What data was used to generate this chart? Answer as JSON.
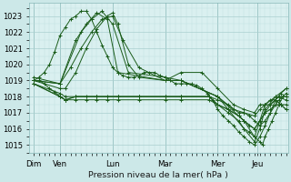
{
  "bg_color": "#cce8e8",
  "plot_bg_color": "#daf0f0",
  "grid_major_color": "#aacfcf",
  "grid_minor_color": "#c0e0e0",
  "line_color": "#1a5c1a",
  "ylabel_text": "Pression niveau de la mer( hPa )",
  "yticks": [
    1015,
    1016,
    1017,
    1018,
    1019,
    1020,
    1021,
    1022,
    1023
  ],
  "ylim": [
    1014.5,
    1023.8
  ],
  "day_labels": [
    "Dim",
    "Ven",
    "Lun",
    "Mar",
    "Mer",
    "Jeu"
  ],
  "day_positions": [
    0,
    30,
    90,
    150,
    210,
    255
  ],
  "xlim": [
    -5,
    290
  ],
  "num_hours": 290,
  "series": [
    [
      0,
      1019.0,
      6,
      1019.2,
      12,
      1019.5,
      18,
      1020.0,
      24,
      1020.8,
      30,
      1021.8,
      36,
      1022.3,
      42,
      1022.8,
      48,
      1023.0,
      54,
      1023.3,
      60,
      1023.3,
      66,
      1022.8,
      72,
      1022.0,
      78,
      1021.2,
      84,
      1020.5,
      90,
      1019.8,
      96,
      1019.5,
      102,
      1019.3,
      108,
      1019.2,
      114,
      1019.2,
      120,
      1019.3,
      126,
      1019.5,
      132,
      1019.5,
      138,
      1019.5,
      144,
      1019.3,
      150,
      1019.2,
      156,
      1019.0,
      162,
      1018.8,
      168,
      1018.8,
      174,
      1018.8,
      180,
      1018.8,
      186,
      1018.7,
      192,
      1018.5,
      198,
      1018.2,
      204,
      1017.8,
      210,
      1017.2,
      216,
      1016.8,
      222,
      1016.5,
      228,
      1016.2,
      234,
      1015.8,
      240,
      1015.5,
      246,
      1015.2,
      252,
      1015.0,
      258,
      1015.5,
      264,
      1016.2,
      270,
      1017.0,
      276,
      1017.8,
      282,
      1018.2,
      288,
      1018.5
    ],
    [
      0,
      1019.0,
      30,
      1018.8,
      54,
      1022.0,
      66,
      1022.8,
      78,
      1023.3,
      90,
      1022.5,
      108,
      1019.5,
      150,
      1019.2,
      168,
      1019.0,
      210,
      1018.0,
      240,
      1016.0,
      252,
      1015.2,
      258,
      1016.0,
      264,
      1017.2,
      276,
      1018.0,
      288,
      1018.5
    ],
    [
      0,
      1019.2,
      30,
      1018.8,
      48,
      1021.5,
      60,
      1022.5,
      72,
      1023.2,
      84,
      1022.8,
      96,
      1019.5,
      150,
      1019.0,
      168,
      1019.0,
      210,
      1018.0,
      240,
      1016.5,
      252,
      1015.5,
      258,
      1016.5,
      264,
      1017.5,
      276,
      1018.0,
      288,
      1017.8
    ],
    [
      0,
      1019.0,
      30,
      1018.8,
      42,
      1019.8,
      54,
      1021.0,
      66,
      1022.0,
      78,
      1022.8,
      90,
      1023.0,
      102,
      1021.5,
      120,
      1019.8,
      150,
      1019.0,
      168,
      1019.0,
      210,
      1018.0,
      228,
      1017.2,
      240,
      1017.0,
      252,
      1016.8,
      258,
      1017.2,
      264,
      1017.5,
      270,
      1017.5,
      276,
      1017.8,
      282,
      1017.5,
      288,
      1017.2
    ],
    [
      0,
      1019.0,
      30,
      1018.5,
      36,
      1018.5,
      48,
      1019.5,
      60,
      1021.0,
      72,
      1022.2,
      84,
      1023.0,
      90,
      1023.2,
      96,
      1022.5,
      108,
      1020.0,
      120,
      1019.2,
      150,
      1019.0,
      168,
      1019.5,
      192,
      1019.5,
      210,
      1018.5,
      228,
      1017.5,
      240,
      1017.2,
      252,
      1017.0,
      258,
      1017.5,
      264,
      1017.5,
      270,
      1017.8,
      276,
      1017.8,
      282,
      1017.5,
      288,
      1017.5
    ],
    [
      0,
      1018.8,
      30,
      1018.0,
      36,
      1017.8,
      48,
      1018.0,
      60,
      1018.0,
      72,
      1018.0,
      84,
      1018.0,
      96,
      1018.0,
      120,
      1018.0,
      150,
      1018.0,
      168,
      1018.0,
      200,
      1018.0,
      210,
      1017.5,
      222,
      1017.0,
      234,
      1016.5,
      240,
      1016.0,
      246,
      1015.8,
      252,
      1015.5,
      258,
      1015.2,
      261,
      1015.0,
      264,
      1015.5,
      268,
      1016.0,
      272,
      1016.5,
      276,
      1017.0,
      280,
      1017.5,
      284,
      1018.0,
      288,
      1018.2
    ],
    [
      0,
      1018.8,
      30,
      1018.0,
      36,
      1017.8,
      48,
      1018.0,
      72,
      1018.0,
      96,
      1018.0,
      120,
      1018.0,
      150,
      1018.0,
      168,
      1018.0,
      200,
      1018.0,
      210,
      1017.8,
      222,
      1017.5,
      234,
      1017.0,
      240,
      1017.0,
      246,
      1016.8,
      252,
      1016.5,
      258,
      1016.2,
      264,
      1016.5,
      270,
      1017.0,
      276,
      1017.5,
      280,
      1017.8,
      284,
      1018.0,
      288,
      1018.0
    ],
    [
      0,
      1018.8,
      30,
      1018.2,
      36,
      1018.0,
      48,
      1018.0,
      72,
      1018.0,
      96,
      1018.0,
      120,
      1018.0,
      150,
      1018.0,
      168,
      1018.0,
      200,
      1018.0,
      210,
      1017.5,
      222,
      1017.2,
      234,
      1016.8,
      240,
      1016.5,
      246,
      1016.2,
      252,
      1016.0,
      258,
      1016.5,
      264,
      1017.0,
      270,
      1017.5,
      276,
      1017.8,
      280,
      1018.0,
      284,
      1018.0,
      288,
      1018.0
    ],
    [
      0,
      1019.0,
      6,
      1019.0,
      12,
      1018.8,
      18,
      1018.5,
      24,
      1018.3,
      30,
      1018.0,
      36,
      1017.8,
      48,
      1017.8,
      60,
      1017.8,
      72,
      1017.8,
      84,
      1017.8,
      96,
      1017.8,
      120,
      1017.8,
      150,
      1017.8,
      168,
      1017.8,
      200,
      1017.8,
      210,
      1017.5,
      222,
      1017.2,
      234,
      1016.8,
      240,
      1016.5,
      252,
      1016.0,
      258,
      1016.5,
      264,
      1017.0,
      270,
      1017.2,
      276,
      1017.5,
      282,
      1017.5,
      288,
      1017.2
    ]
  ]
}
